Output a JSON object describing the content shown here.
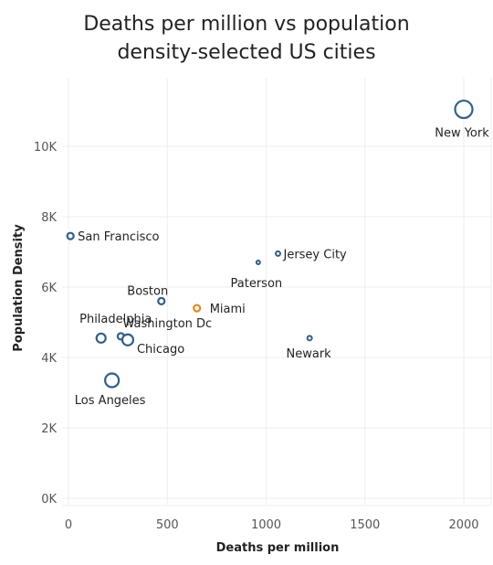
{
  "chart_data": {
    "type": "scatter",
    "title_lines": [
      "Deaths per million vs population",
      "density-selected US cities"
    ],
    "xlabel": "Deaths per million",
    "ylabel": "Population Density",
    "xlim": [
      0,
      2100
    ],
    "ylim": [
      -150,
      11800
    ],
    "x_ticks": [
      0,
      500,
      1000,
      1500,
      2000
    ],
    "x_tick_labels": [
      "0",
      "500",
      "1000",
      "1500",
      "2000"
    ],
    "y_ticks": [
      0,
      2000,
      4000,
      6000,
      8000,
      10000
    ],
    "y_tick_labels": [
      "0K",
      "2K",
      "4K",
      "6K",
      "8K",
      "10K"
    ],
    "grid": true,
    "colors": {
      "default": "#2e5f8f",
      "highlight": "#e8891a"
    },
    "points": [
      {
        "label": "New York",
        "x": 2000,
        "y": 11050,
        "size": 19,
        "highlight": false
      },
      {
        "label": "San Francisco",
        "x": 10,
        "y": 7450,
        "size": 7,
        "highlight": false
      },
      {
        "label": "Jersey City",
        "x": 1060,
        "y": 6950,
        "size": 5,
        "highlight": false
      },
      {
        "label": "Paterson",
        "x": 960,
        "y": 6700,
        "size": 4,
        "highlight": false
      },
      {
        "label": "Boston",
        "x": 470,
        "y": 5600,
        "size": 7,
        "highlight": false
      },
      {
        "label": "Miami",
        "x": 650,
        "y": 5400,
        "size": 7,
        "highlight": true
      },
      {
        "label": "Philadelphia",
        "x": 165,
        "y": 4550,
        "size": 10,
        "highlight": false
      },
      {
        "label": "Washington Dc",
        "x": 265,
        "y": 4600,
        "size": 7,
        "highlight": false
      },
      {
        "label": "Chicago",
        "x": 300,
        "y": 4500,
        "size": 12,
        "highlight": false
      },
      {
        "label": "Newark",
        "x": 1220,
        "y": 4550,
        "size": 5,
        "highlight": false
      },
      {
        "label": "Los Angeles",
        "x": 220,
        "y": 3350,
        "size": 15,
        "highlight": false
      }
    ]
  }
}
